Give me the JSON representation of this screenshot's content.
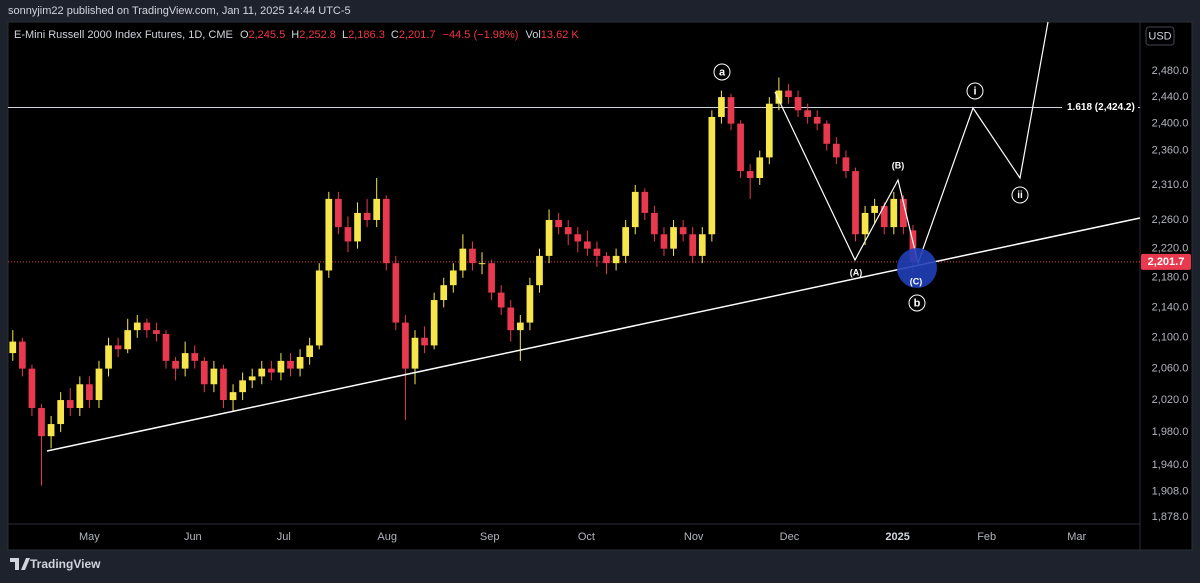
{
  "page": {
    "publisher": "sonnyjim22 published on TradingView.com, Jan 11, 2025 14:44 UTC-5",
    "brand": "TradingView",
    "currency": "USD"
  },
  "chart_data": {
    "type": "candlestick",
    "symbol": "E-Mini Russell 2000 Index Futures, 1D, CME",
    "legend": {
      "open_key": "O",
      "open": "2,245.5",
      "high_key": "H",
      "high": "2,252.8",
      "low_key": "L",
      "low": "2,186.3",
      "close_key": "C",
      "close": "2,201.7",
      "change": "−44.5 (−1.98%)",
      "volume_key": "Vol",
      "volume": "13.62 K"
    },
    "log_scale": true,
    "grid": false,
    "up_color": "#f7e64b",
    "down_color": "#e8394f",
    "xlim": [
      0,
      118
    ],
    "ylim": [
      1842,
      2557
    ],
    "xticks": [
      {
        "value": 8.5,
        "label": "May"
      },
      {
        "value": 19.3,
        "label": "Jun"
      },
      {
        "value": 28.8,
        "label": "Jul"
      },
      {
        "value": 39.6,
        "label": "Aug"
      },
      {
        "value": 50.3,
        "label": "Sep"
      },
      {
        "value": 60.4,
        "label": "Oct"
      },
      {
        "value": 71.6,
        "label": "Nov"
      },
      {
        "value": 81.6,
        "label": "Dec"
      },
      {
        "value": 92.9,
        "label": "2025",
        "bold": true
      },
      {
        "value": 102.2,
        "label": "Feb"
      },
      {
        "value": 111.6,
        "label": "Mar"
      }
    ],
    "yticks": [
      {
        "value": 2480,
        "label": "2,480.0"
      },
      {
        "value": 2440,
        "label": "2,440.0"
      },
      {
        "value": 2400,
        "label": "2,400.0"
      },
      {
        "value": 2360,
        "label": "2,360.0"
      },
      {
        "value": 2310,
        "label": "2,310.0"
      },
      {
        "value": 2260,
        "label": "2,260.0"
      },
      {
        "value": 2220,
        "label": "2,220.0"
      },
      {
        "value": 2180,
        "label": "2,180.0"
      },
      {
        "value": 2140,
        "label": "2,140.0"
      },
      {
        "value": 2100,
        "label": "2,100.0"
      },
      {
        "value": 2060,
        "label": "2,060.0"
      },
      {
        "value": 2020,
        "label": "2,020.0"
      },
      {
        "value": 1980,
        "label": "1,980.0"
      },
      {
        "value": 1940,
        "label": "1,940.0"
      },
      {
        "value": 1908,
        "label": "1,908.0"
      },
      {
        "value": 1878,
        "label": "1,878.0"
      }
    ],
    "candles": [
      [
        2080,
        2110,
        2070,
        2095
      ],
      [
        2095,
        2100,
        2050,
        2060
      ],
      [
        2060,
        2065,
        2000,
        2010
      ],
      [
        2010,
        2015,
        1915,
        1975
      ],
      [
        1975,
        2000,
        1960,
        1990
      ],
      [
        1990,
        2030,
        1980,
        2020
      ],
      [
        2020,
        2035,
        2000,
        2010
      ],
      [
        2010,
        2050,
        2000,
        2040
      ],
      [
        2040,
        2050,
        2010,
        2020
      ],
      [
        2020,
        2070,
        2010,
        2060
      ],
      [
        2060,
        2100,
        2050,
        2090
      ],
      [
        2090,
        2100,
        2075,
        2085
      ],
      [
        2085,
        2125,
        2080,
        2110
      ],
      [
        2110,
        2130,
        2100,
        2120
      ],
      [
        2120,
        2125,
        2100,
        2110
      ],
      [
        2110,
        2120,
        2095,
        2105
      ],
      [
        2105,
        2110,
        2060,
        2070
      ],
      [
        2070,
        2075,
        2045,
        2060
      ],
      [
        2060,
        2095,
        2050,
        2080
      ],
      [
        2080,
        2090,
        2060,
        2070
      ],
      [
        2070,
        2075,
        2030,
        2040
      ],
      [
        2040,
        2070,
        2030,
        2060
      ],
      [
        2060,
        2065,
        2010,
        2020
      ],
      [
        2020,
        2040,
        2005,
        2030
      ],
      [
        2030,
        2055,
        2020,
        2045
      ],
      [
        2045,
        2060,
        2035,
        2050
      ],
      [
        2050,
        2070,
        2040,
        2060
      ],
      [
        2060,
        2070,
        2045,
        2055
      ],
      [
        2055,
        2080,
        2045,
        2070
      ],
      [
        2070,
        2080,
        2050,
        2060
      ],
      [
        2060,
        2085,
        2050,
        2075
      ],
      [
        2075,
        2100,
        2065,
        2090
      ],
      [
        2090,
        2200,
        2085,
        2190
      ],
      [
        2190,
        2300,
        2180,
        2290
      ],
      [
        2290,
        2300,
        2240,
        2250
      ],
      [
        2250,
        2265,
        2215,
        2230
      ],
      [
        2230,
        2285,
        2220,
        2270
      ],
      [
        2270,
        2290,
        2250,
        2260
      ],
      [
        2260,
        2320,
        2250,
        2290
      ],
      [
        2290,
        2295,
        2190,
        2200
      ],
      [
        2200,
        2210,
        2110,
        2120
      ],
      [
        2120,
        2130,
        1995,
        2060
      ],
      [
        2060,
        2110,
        2040,
        2100
      ],
      [
        2100,
        2115,
        2080,
        2090
      ],
      [
        2090,
        2160,
        2085,
        2150
      ],
      [
        2150,
        2180,
        2140,
        2170
      ],
      [
        2170,
        2200,
        2160,
        2190
      ],
      [
        2190,
        2240,
        2180,
        2220
      ],
      [
        2220,
        2230,
        2190,
        2200
      ],
      [
        2200,
        2215,
        2185,
        2200
      ],
      [
        2200,
        2205,
        2150,
        2160
      ],
      [
        2160,
        2170,
        2130,
        2140
      ],
      [
        2140,
        2150,
        2095,
        2110
      ],
      [
        2110,
        2130,
        2070,
        2120
      ],
      [
        2120,
        2180,
        2110,
        2170
      ],
      [
        2170,
        2220,
        2160,
        2210
      ],
      [
        2210,
        2275,
        2200,
        2260
      ],
      [
        2260,
        2270,
        2240,
        2250
      ],
      [
        2250,
        2260,
        2225,
        2240
      ],
      [
        2240,
        2250,
        2215,
        2230
      ],
      [
        2230,
        2245,
        2210,
        2220
      ],
      [
        2220,
        2230,
        2195,
        2210
      ],
      [
        2210,
        2215,
        2185,
        2200
      ],
      [
        2200,
        2220,
        2190,
        2210
      ],
      [
        2210,
        2260,
        2200,
        2250
      ],
      [
        2250,
        2310,
        2240,
        2300
      ],
      [
        2300,
        2305,
        2260,
        2270
      ],
      [
        2270,
        2280,
        2230,
        2240
      ],
      [
        2240,
        2250,
        2210,
        2220
      ],
      [
        2220,
        2260,
        2210,
        2250
      ],
      [
        2250,
        2260,
        2230,
        2240
      ],
      [
        2240,
        2250,
        2200,
        2210
      ],
      [
        2210,
        2250,
        2200,
        2240
      ],
      [
        2240,
        2420,
        2230,
        2410
      ],
      [
        2410,
        2450,
        2400,
        2440
      ],
      [
        2440,
        2445,
        2390,
        2400
      ],
      [
        2400,
        2405,
        2320,
        2330
      ],
      [
        2330,
        2340,
        2290,
        2320
      ],
      [
        2320,
        2360,
        2310,
        2350
      ],
      [
        2350,
        2440,
        2340,
        2430
      ],
      [
        2430,
        2470,
        2420,
        2450
      ],
      [
        2450,
        2460,
        2430,
        2440
      ],
      [
        2440,
        2450,
        2410,
        2420
      ],
      [
        2420,
        2430,
        2400,
        2410
      ],
      [
        2410,
        2420,
        2390,
        2400
      ],
      [
        2400,
        2405,
        2360,
        2370
      ],
      [
        2370,
        2380,
        2340,
        2350
      ],
      [
        2350,
        2360,
        2320,
        2330
      ],
      [
        2330,
        2335,
        2230,
        2240
      ],
      [
        2240,
        2280,
        2225,
        2270
      ],
      [
        2270,
        2290,
        2255,
        2280
      ],
      [
        2280,
        2285,
        2240,
        2250
      ],
      [
        2250,
        2300,
        2240,
        2290
      ],
      [
        2290,
        2295,
        2240,
        2250
      ],
      [
        2245.5,
        2252.8,
        2186.3,
        2201.7
      ]
    ],
    "fib_level": {
      "value": 2424.2,
      "label": "1.618 (2,424.2)"
    },
    "last_price": {
      "value": 2201.7,
      "label": "2,201.7"
    },
    "wave_labels": {
      "a": "a",
      "A": "(A)",
      "B": "(B)",
      "C": "(C)",
      "b": "b",
      "i": "i",
      "ii": "ii"
    }
  }
}
